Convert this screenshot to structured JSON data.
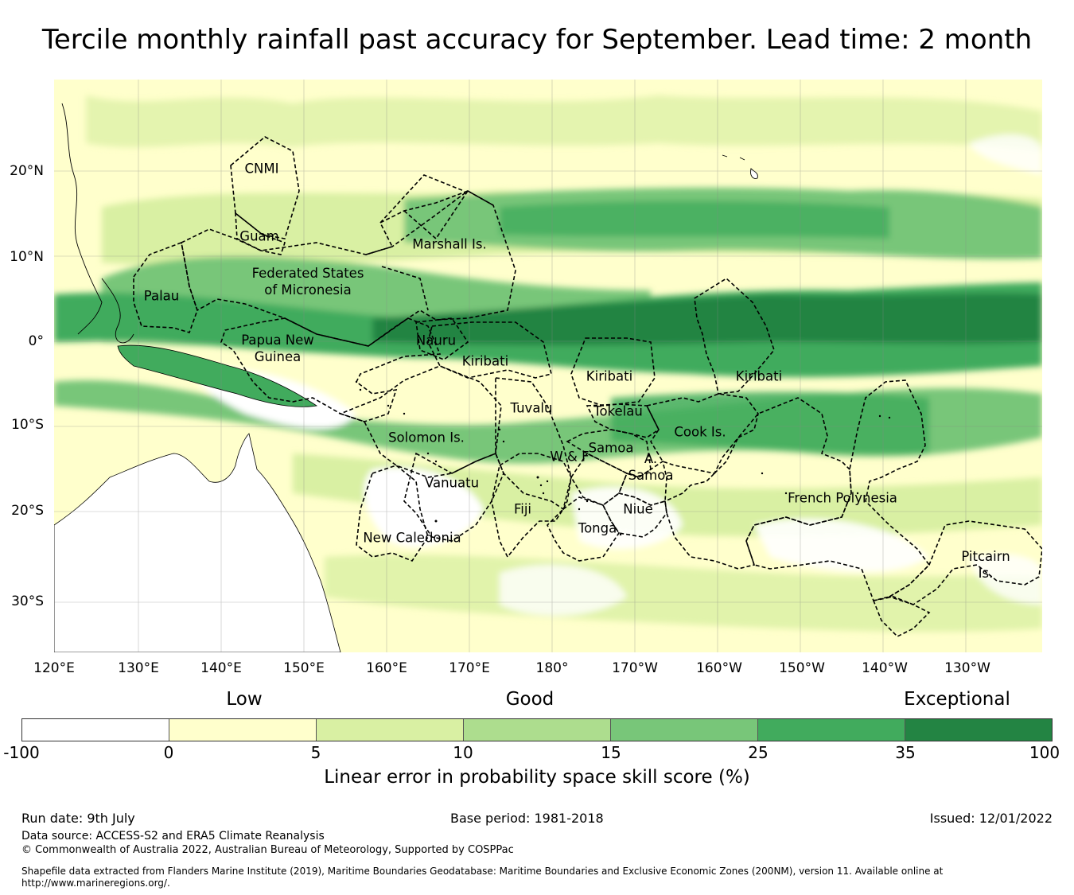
{
  "title": "Tercile monthly rainfall past accuracy for September. Lead time: 2 month",
  "map": {
    "lat_ticks": [
      "20°N",
      "10°N",
      "0°",
      "10°S",
      "20°S",
      "30°S"
    ],
    "lon_ticks": [
      "120°E",
      "130°E",
      "140°E",
      "150°E",
      "160°E",
      "170°E",
      "180°",
      "170°W",
      "160°W",
      "150°W",
      "140°W",
      "130°W"
    ],
    "regions": [
      {
        "name": "CNMI"
      },
      {
        "name": "Guam"
      },
      {
        "name": "Marshall Is."
      },
      {
        "name": "Federated States\nof Micronesia"
      },
      {
        "name": "Palau"
      },
      {
        "name": "Papua New\nGuinea"
      },
      {
        "name": "Nauru"
      },
      {
        "name": "Kiribati"
      },
      {
        "name": "Kiribati"
      },
      {
        "name": "Kiribati"
      },
      {
        "name": "Tuvalu"
      },
      {
        "name": "Tokelau"
      },
      {
        "name": "Cook Is."
      },
      {
        "name": "Solomon Is."
      },
      {
        "name": "Samoa"
      },
      {
        "name": "W & F"
      },
      {
        "name": "A.\nSamoa"
      },
      {
        "name": "Vanuatu"
      },
      {
        "name": "Fiji"
      },
      {
        "name": "Niue"
      },
      {
        "name": "Tonga"
      },
      {
        "name": "French Polynesia"
      },
      {
        "name": "New Caledonia"
      },
      {
        "name": "Pitcairn\nIs."
      }
    ]
  },
  "colorbar": {
    "categories": [
      "Low",
      "Good",
      "Exceptional"
    ],
    "ticks": [
      "-100",
      "0",
      "5",
      "10",
      "15",
      "25",
      "35",
      "100"
    ],
    "colors": [
      "#ffffff",
      "#ffffcc",
      "#d9f0a3",
      "#addd8e",
      "#78c679",
      "#41ab5d",
      "#238443"
    ],
    "label": "Linear error in probability space skill score (%)"
  },
  "footer": {
    "run_date": "Run date: 9th July",
    "base_period": "Base period: 1981-2018",
    "issued": "Issued: 12/01/2022",
    "data_source": "Data source: ACCESS-S2 and ERA5 Climate Reanalysis",
    "copyright": "© Commonwealth of Australia 2022, Australian Bureau of Meteorology, Supported by COSPPac",
    "shapefile": "Shapefile data extracted from Flanders Marine Institute (2019), Maritime Boundaries Geodatabase: Maritime Boundaries and Exclusive Economic Zones (200NM), version 11. Available online at http://www.marineregions.org/."
  }
}
